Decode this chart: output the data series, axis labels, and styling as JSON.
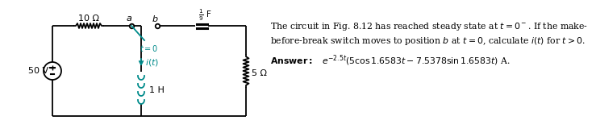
{
  "bg_color": "#ffffff",
  "circuit_color": "#000000",
  "teal_color": "#008B8B",
  "resistor1_label": "10 Ω",
  "resistor2_label": "5 Ω",
  "inductor_label": "1 H",
  "capacitor_label": "$\\frac{1}{9}$ F",
  "voltage_label": "50 V",
  "switch_label_a": "$a$",
  "switch_label_b": "$b$",
  "switch_time": "$t=0$",
  "current_label": "$i(t)$",
  "line1": "The circuit in Fig. 8.12 has reached steady state at $t = 0^-$. If the make-",
  "line2": "before-break switch moves to position $b$ at $t = 0$, calculate $i(t)$ for $t > 0$.",
  "answer_bold": "Answer:",
  "answer_math": "$e^{-2.5t}(5\\cos 1.6583t - 7.5378\\sin 1.6583t)$ A."
}
